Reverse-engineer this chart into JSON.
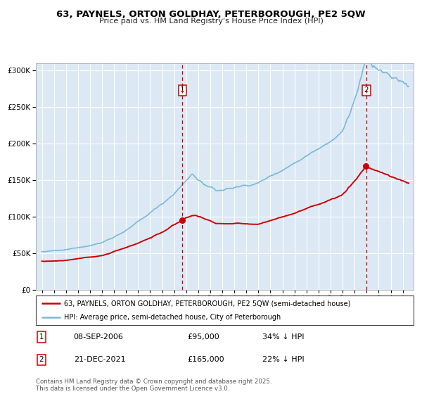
{
  "title1": "63, PAYNELS, ORTON GOLDHAY, PETERBOROUGH, PE2 5QW",
  "title2": "Price paid vs. HM Land Registry's House Price Index (HPI)",
  "legend_line1": "63, PAYNELS, ORTON GOLDHAY, PETERBOROUGH, PE2 5QW (semi-detached house)",
  "legend_line2": "HPI: Average price, semi-detached house, City of Peterborough",
  "annotation1_label": "1",
  "annotation1_date": "08-SEP-2006",
  "annotation1_price": "£95,000",
  "annotation1_hpi": "34% ↓ HPI",
  "annotation2_label": "2",
  "annotation2_date": "21-DEC-2021",
  "annotation2_price": "£165,000",
  "annotation2_hpi": "22% ↓ HPI",
  "footer": "Contains HM Land Registry data © Crown copyright and database right 2025.\nThis data is licensed under the Open Government Licence v3.0.",
  "hpi_color": "#7ab8d9",
  "price_color": "#cc0000",
  "vline_color": "#cc0000",
  "bg_color": "#dce9f5",
  "ylim": [
    0,
    310000
  ],
  "yticks": [
    0,
    50000,
    100000,
    150000,
    200000,
    250000,
    300000
  ],
  "sale1_year": 2006.69,
  "sale1_price": 95000,
  "sale2_year": 2021.97,
  "sale2_price": 165000,
  "xmin": 1994.5,
  "xmax": 2025.9
}
